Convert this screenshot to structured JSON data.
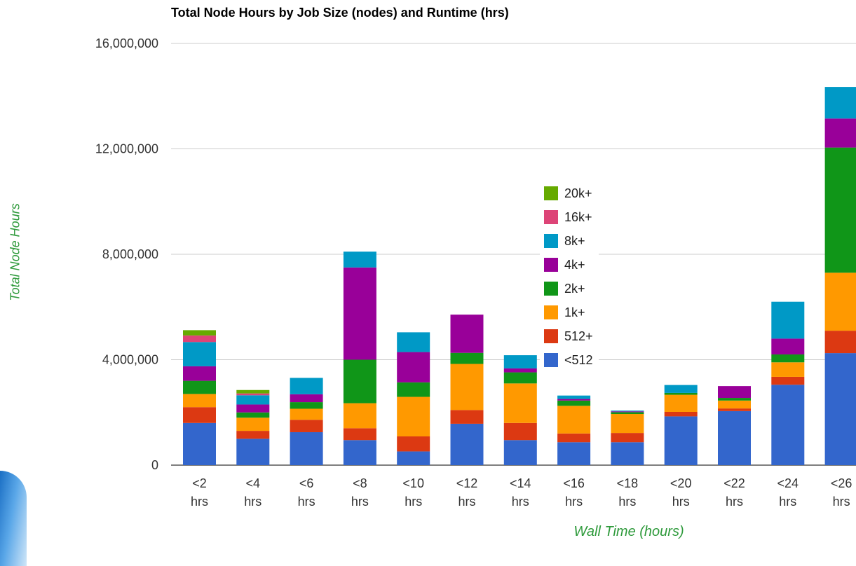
{
  "chart_data": {
    "type": "bar",
    "stacked": true,
    "title": "Total Node Hours by Job Size (nodes) and Runtime (hrs)",
    "xlabel": "Wall Time (hours)",
    "ylabel": "Total Node Hours",
    "ylim": [
      0,
      16000000
    ],
    "yticks": [
      "0",
      "4,000,000",
      "8,000,000",
      "12,000,000",
      "16,000,000"
    ],
    "ytick_values": [
      0,
      4000000,
      8000000,
      12000000,
      16000000
    ],
    "grid": true,
    "legend_position": "center",
    "categories": [
      [
        "<2",
        "hrs"
      ],
      [
        "<4",
        "hrs"
      ],
      [
        "<6",
        "hrs"
      ],
      [
        "<8",
        "hrs"
      ],
      [
        "<10",
        "hrs"
      ],
      [
        "<12",
        "hrs"
      ],
      [
        "<14",
        "hrs"
      ],
      [
        "<16",
        "hrs"
      ],
      [
        "<18",
        "hrs"
      ],
      [
        "<20",
        "hrs"
      ],
      [
        "<22",
        "hrs"
      ],
      [
        "<24",
        "hrs"
      ],
      [
        "<26",
        "hrs"
      ]
    ],
    "series": [
      {
        "name": "<512",
        "color": "#3366cc",
        "values": [
          1600000,
          1000000,
          1250000,
          950000,
          520000,
          1570000,
          950000,
          870000,
          870000,
          1850000,
          2050000,
          3050000,
          4250000
        ]
      },
      {
        "name": "512+",
        "color": "#dc3912",
        "values": [
          600000,
          300000,
          470000,
          450000,
          570000,
          520000,
          650000,
          330000,
          350000,
          170000,
          100000,
          300000,
          850000
        ]
      },
      {
        "name": "1k+",
        "color": "#ff9900",
        "values": [
          500000,
          500000,
          420000,
          950000,
          1500000,
          1750000,
          1500000,
          1050000,
          720000,
          650000,
          300000,
          550000,
          2200000
        ]
      },
      {
        "name": "2k+",
        "color": "#109618",
        "values": [
          500000,
          200000,
          250000,
          1650000,
          550000,
          420000,
          420000,
          200000,
          70000,
          70000,
          100000,
          300000,
          4750000
        ]
      },
      {
        "name": "4k+",
        "color": "#990099",
        "values": [
          550000,
          300000,
          300000,
          3500000,
          1150000,
          1450000,
          150000,
          60000,
          30000,
          0,
          450000,
          600000,
          1100000
        ]
      },
      {
        "name": "8k+",
        "color": "#0099c6",
        "values": [
          920000,
          350000,
          620000,
          600000,
          750000,
          0,
          500000,
          130000,
          30000,
          300000,
          0,
          1400000,
          1200000
        ]
      },
      {
        "name": "16k+",
        "color": "#dd4477",
        "values": [
          250000,
          70000,
          0,
          0,
          0,
          0,
          0,
          0,
          0,
          0,
          0,
          0,
          0
        ]
      },
      {
        "name": "20k+",
        "color": "#66aa00",
        "values": [
          200000,
          130000,
          0,
          0,
          0,
          0,
          0,
          0,
          0,
          0,
          0,
          0,
          0
        ]
      }
    ]
  }
}
